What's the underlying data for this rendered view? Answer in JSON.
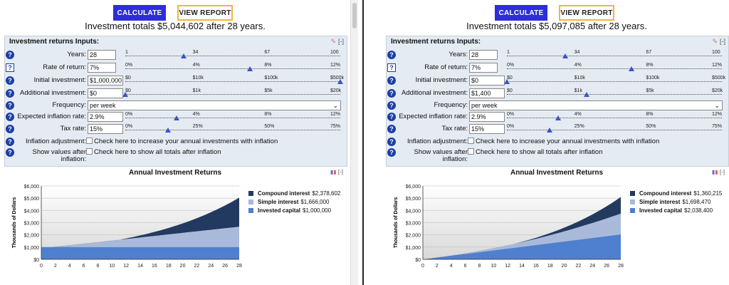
{
  "colors": {
    "calc": "#2d2ddb",
    "view_border": "#f3b53b",
    "compound": "#233a60",
    "simple": "#a9b9d9",
    "capital": "#4f7fcf"
  },
  "left": {
    "buttons": {
      "calculate": "CALCULATE",
      "view_report": "VIEW REPORT"
    },
    "summary": "Investment totals $5,044,602 after 28 years.",
    "inputs_header": "Investment returns Inputs:",
    "header_collapse": "[-]",
    "years": {
      "label": "Years:",
      "value": "28",
      "ticks": [
        "1",
        "34",
        "67",
        "100"
      ],
      "slider_fraction": 0.27
    },
    "rate": {
      "label": "Rate of return:",
      "value": "7%",
      "ticks": [
        "0%",
        "4%",
        "8%",
        "12%"
      ],
      "slider_fraction": 0.58
    },
    "initial": {
      "label": "Initial investment:",
      "value": "$1,000,000",
      "ticks": [
        "$0",
        "$10k",
        "$100k",
        "$500k"
      ],
      "slider_fraction": 1.0
    },
    "additional": {
      "label": "Additional investment:",
      "value": "$0",
      "ticks": [
        "$0",
        "$1k",
        "$5k",
        "$20k"
      ],
      "slider_fraction": 0.0
    },
    "frequency": {
      "label": "Frequency:",
      "value": "per week"
    },
    "inflation_rate": {
      "label": "Expected inflation rate:",
      "value": "2.9%",
      "ticks": [
        "0%",
        "4%",
        "8%",
        "12%"
      ],
      "slider_fraction": 0.24
    },
    "tax_rate": {
      "label": "Tax rate:",
      "value": "15%",
      "ticks": [
        "0%",
        "25%",
        "50%",
        "75%"
      ],
      "slider_fraction": 0.2
    },
    "inflation_adj": {
      "label": "Inflation adjustment:",
      "text": "Check here to increase your annual investments with inflation"
    },
    "show_after": {
      "label1": "Show values after",
      "label2": "inflation:",
      "text": "Check here to show all totals after inflation"
    },
    "chart_title": "Annual Investment Returns",
    "chart_data": {
      "type": "area",
      "ylabel": "Thousands of Dollars",
      "yticks": [
        "$0",
        "$1,000",
        "$2,000",
        "$3,000",
        "$4,000",
        "$5,000",
        "$6,000"
      ],
      "ylim": [
        0,
        6000
      ],
      "xticks": [
        "0",
        "2",
        "4",
        "6",
        "8",
        "10",
        "12",
        "14",
        "16",
        "18",
        "20",
        "22",
        "24",
        "26",
        "28"
      ],
      "xlim": [
        0,
        28
      ],
      "series": [
        {
          "name": "Compound interest",
          "value": "$2,378,602",
          "end_total": 5044.6
        },
        {
          "name": "Simple interest",
          "value": "$1,666,000",
          "end_total": 2666
        },
        {
          "name": "Invested capital",
          "value": "$1,000,000",
          "end_total": 1000
        }
      ],
      "rate": 0.07,
      "initial": 1000,
      "annual_add": 0
    }
  },
  "right": {
    "buttons": {
      "calculate": "CALCULATE",
      "view_report": "VIEW REPORT"
    },
    "summary": "Investment totals $5,097,085 after 28 years.",
    "inputs_header": "Investment returns Inputs:",
    "header_collapse": "[-]",
    "years": {
      "label": "Years:",
      "value": "28",
      "ticks": [
        "1",
        "34",
        "67",
        "100"
      ],
      "slider_fraction": 0.27
    },
    "rate": {
      "label": "Rate of return:",
      "value": "7%",
      "ticks": [
        "0%",
        "4%",
        "8%",
        "12%"
      ],
      "slider_fraction": 0.58
    },
    "initial": {
      "label": "Initial investment:",
      "value": "$0",
      "ticks": [
        "$0",
        "$10k",
        "$100k",
        "$500k"
      ],
      "slider_fraction": 0.0
    },
    "additional": {
      "label": "Additional investment:",
      "value": "$1,400",
      "ticks": [
        "$0",
        "$1k",
        "$5k",
        "$20k"
      ],
      "slider_fraction": 0.37
    },
    "frequency": {
      "label": "Frequency:",
      "value": "per week"
    },
    "inflation_rate": {
      "label": "Expected inflation rate:",
      "value": "2.9%",
      "ticks": [
        "0%",
        "4%",
        "8%",
        "12%"
      ],
      "slider_fraction": 0.24
    },
    "tax_rate": {
      "label": "Tax rate:",
      "value": "15%",
      "ticks": [
        "0%",
        "25%",
        "50%",
        "75%"
      ],
      "slider_fraction": 0.2
    },
    "inflation_adj": {
      "label": "Inflation adjustment:",
      "text": "Check here to increase your annual investments with inflation"
    },
    "show_after": {
      "label1": "Show values after",
      "label2": "inflation:",
      "text": "Check here to show all totals after inflation"
    },
    "chart_title": "Annual Investment Returns",
    "chart_data": {
      "type": "area",
      "ylabel": "Thousands of Dollars",
      "yticks": [
        "$0",
        "$1,000",
        "$2,000",
        "$3,000",
        "$4,000",
        "$5,000",
        "$6,000"
      ],
      "ylim": [
        0,
        6000
      ],
      "xticks": [
        "0",
        "2",
        "4",
        "6",
        "8",
        "10",
        "12",
        "14",
        "16",
        "18",
        "20",
        "22",
        "24",
        "26",
        "28"
      ],
      "xlim": [
        0,
        28
      ],
      "series": [
        {
          "name": "Compound interest",
          "value": "$1,360,215",
          "end_total": 5097.1
        },
        {
          "name": "Simple interest",
          "value": "$1,698,470",
          "end_total": 3736.9
        },
        {
          "name": "Invested capital",
          "value": "$2,038,400",
          "end_total": 2038.4
        }
      ],
      "rate": 0.07,
      "initial": 0,
      "annual_add": 72.8
    }
  }
}
